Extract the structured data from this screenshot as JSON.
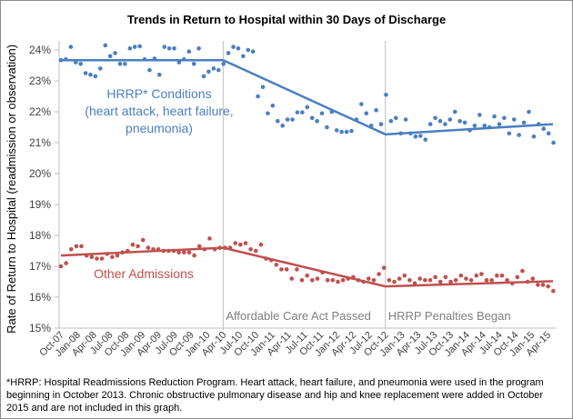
{
  "chart_data": {
    "type": "scatter",
    "title": "Trends in Return to Hospital within 30 Days of Discharge",
    "xlabel": "",
    "ylabel": "Rate of Return to Hospital (readmission or observation)",
    "ylim": [
      15,
      24.3
    ],
    "yticks": [
      "15%",
      "16%",
      "17%",
      "18%",
      "19%",
      "20%",
      "21%",
      "22%",
      "23%",
      "24%"
    ],
    "ytick_values": [
      15,
      16,
      17,
      18,
      19,
      20,
      21,
      22,
      23,
      24
    ],
    "xticks": [
      "Oct-07",
      "Jan-08",
      "Apr-08",
      "Jul-08",
      "Oct-08",
      "Jan-09",
      "Apr-09",
      "Jul-09",
      "Oct-09",
      "Jan-10",
      "Apr-10",
      "Jul-10",
      "Oct-10",
      "Jan-11",
      "Apr-11",
      "Jul-11",
      "Oct-11",
      "Jan-12",
      "Apr-12",
      "Jul-12",
      "Oct-12",
      "Jan-13",
      "Apr-13",
      "Jul-13",
      "Oct-13",
      "Jan-14",
      "Apr-14",
      "Jul-14",
      "Oct-14",
      "Jan-15",
      "Apr-15"
    ],
    "grid": false,
    "vlines": [
      {
        "at_month_index": 30,
        "label": "Affordable Care Act Passed"
      },
      {
        "at_month_index": 60,
        "label": "HRRP Penalties Began"
      }
    ],
    "series": [
      {
        "name": "HRRP* Conditions (heart attack, heart failure, pneumonia)",
        "label_lines": [
          "HRRP* Conditions",
          "(heart attack, heart failure,",
          "pneumonia)"
        ],
        "color": "#4a7fc1",
        "values": [
          23.67,
          23.7,
          24.1,
          23.6,
          23.55,
          23.25,
          23.2,
          23.15,
          23.4,
          24.15,
          23.8,
          23.9,
          23.55,
          23.55,
          24.05,
          24.1,
          24.12,
          23.7,
          23.35,
          23.72,
          23.2,
          24.1,
          24.05,
          24.05,
          23.6,
          23.7,
          23.95,
          23.55,
          24.05,
          23.15,
          23.3,
          23.4,
          23.35,
          23.55,
          23.9,
          24.1,
          24.05,
          23.8,
          24.0,
          23.95,
          22.5,
          22.8,
          21.95,
          22.2,
          21.7,
          21.55,
          21.75,
          21.75,
          21.98,
          21.98,
          22.15,
          21.8,
          21.7,
          21.95,
          21.5,
          22.0,
          21.4,
          21.35,
          21.35,
          21.38,
          21.75,
          22.25,
          21.95,
          21.55,
          22.05,
          21.6,
          22.55,
          21.7,
          21.8,
          21.3,
          21.75,
          21.3,
          21.2,
          21.22,
          21.1,
          21.6,
          21.8,
          21.7,
          21.6,
          21.75,
          22.0,
          21.7,
          21.65,
          21.4,
          21.55,
          21.9,
          21.55,
          21.5,
          21.85,
          21.6,
          21.8,
          21.3,
          21.75,
          21.25,
          21.65,
          22.0,
          21.2,
          21.6,
          21.45,
          21.3,
          21.0
        ],
        "trend": [
          [
            0,
            23.67
          ],
          [
            30,
            23.67
          ],
          [
            60,
            21.27
          ],
          [
            91,
            21.6
          ]
        ]
      },
      {
        "name": "Other Admissions",
        "label_lines": [
          "Other Admissions"
        ],
        "color": "#c0504d",
        "values": [
          17.0,
          17.1,
          17.55,
          17.65,
          17.65,
          17.35,
          17.3,
          17.25,
          17.25,
          17.4,
          17.3,
          17.35,
          17.45,
          17.5,
          17.7,
          17.65,
          17.85,
          17.6,
          17.55,
          17.55,
          17.5,
          17.5,
          17.5,
          17.45,
          17.45,
          17.45,
          17.35,
          17.65,
          17.55,
          17.9,
          17.55,
          17.6,
          17.6,
          17.6,
          17.75,
          17.7,
          17.75,
          17.55,
          17.5,
          17.7,
          17.25,
          17.2,
          17.05,
          16.9,
          16.9,
          16.6,
          16.9,
          16.55,
          16.7,
          16.55,
          16.6,
          16.8,
          16.55,
          16.55,
          16.5,
          16.55,
          16.6,
          16.65,
          16.55,
          16.5,
          16.6,
          16.55,
          16.75,
          16.95,
          16.55,
          16.5,
          16.6,
          16.7,
          16.55,
          16.45,
          16.6,
          16.55,
          16.55,
          16.65,
          16.5,
          16.65,
          16.5,
          16.55,
          16.7,
          16.6,
          16.55,
          16.7,
          16.75,
          16.55,
          16.55,
          16.7,
          16.7,
          16.55,
          16.45,
          16.65,
          16.85,
          16.5,
          16.6,
          16.4,
          16.4,
          16.35,
          16.2
        ],
        "trend": [
          [
            0,
            17.35
          ],
          [
            30,
            17.6
          ],
          [
            60,
            16.35
          ],
          [
            91,
            16.52
          ]
        ]
      }
    ]
  },
  "footnote": "*HRRP: Hospital Readmissions Reduction Program. Heart attack, heart failure, and pneumonia were used in the program beginning in October 2013. Chronic obstructive pulmonary disease and hip and knee replacement were added in October 2015 and are not included in this graph."
}
